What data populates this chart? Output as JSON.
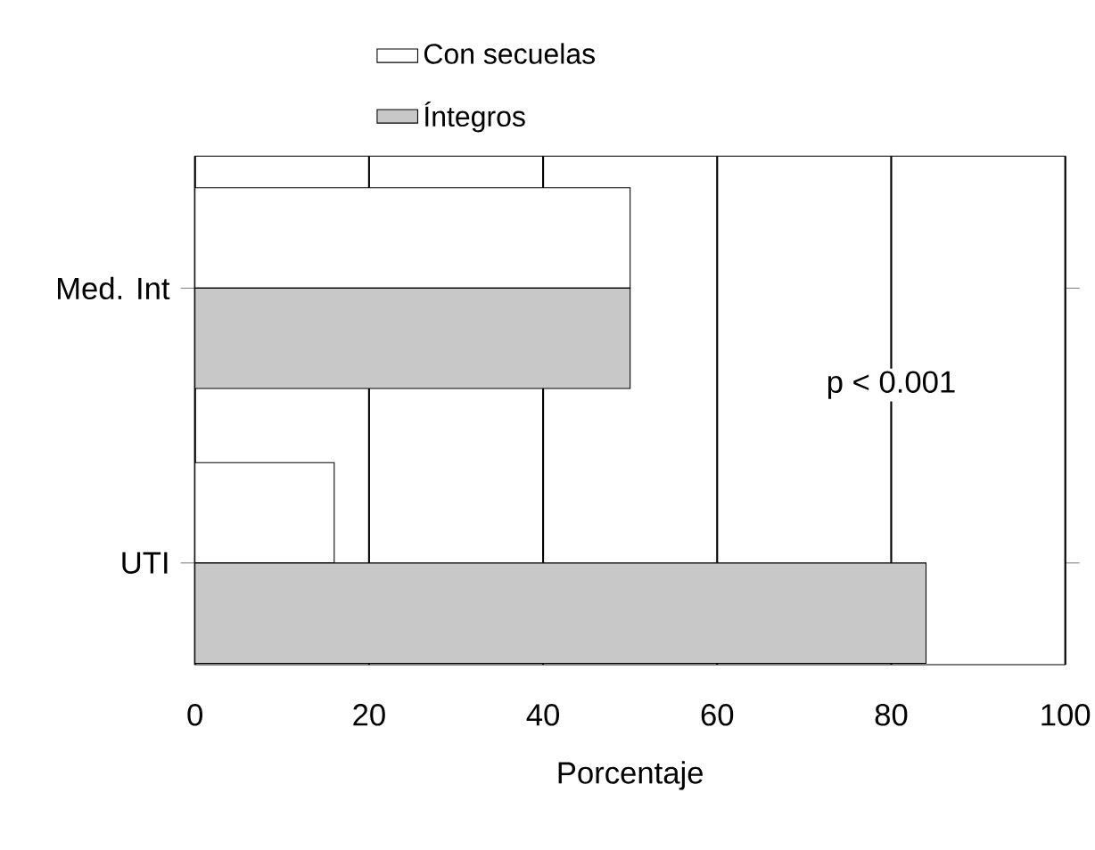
{
  "chart_data": {
    "type": "bar",
    "orientation": "horizontal",
    "xlabel": "Porcentaje",
    "categories": [
      "Med. Int",
      "UTI"
    ],
    "series": [
      {
        "name": "Con secuelas",
        "color": "#ffffff",
        "values": [
          50,
          16
        ]
      },
      {
        "name": "Íntegros",
        "color": "#c8c8c8",
        "values": [
          50,
          84
        ]
      }
    ],
    "xlim": [
      0,
      100
    ],
    "xticks": [
      0,
      20,
      40,
      60,
      80,
      100
    ],
    "grid": "x",
    "legend": "top",
    "annotations": [
      "p < 0.001"
    ]
  }
}
